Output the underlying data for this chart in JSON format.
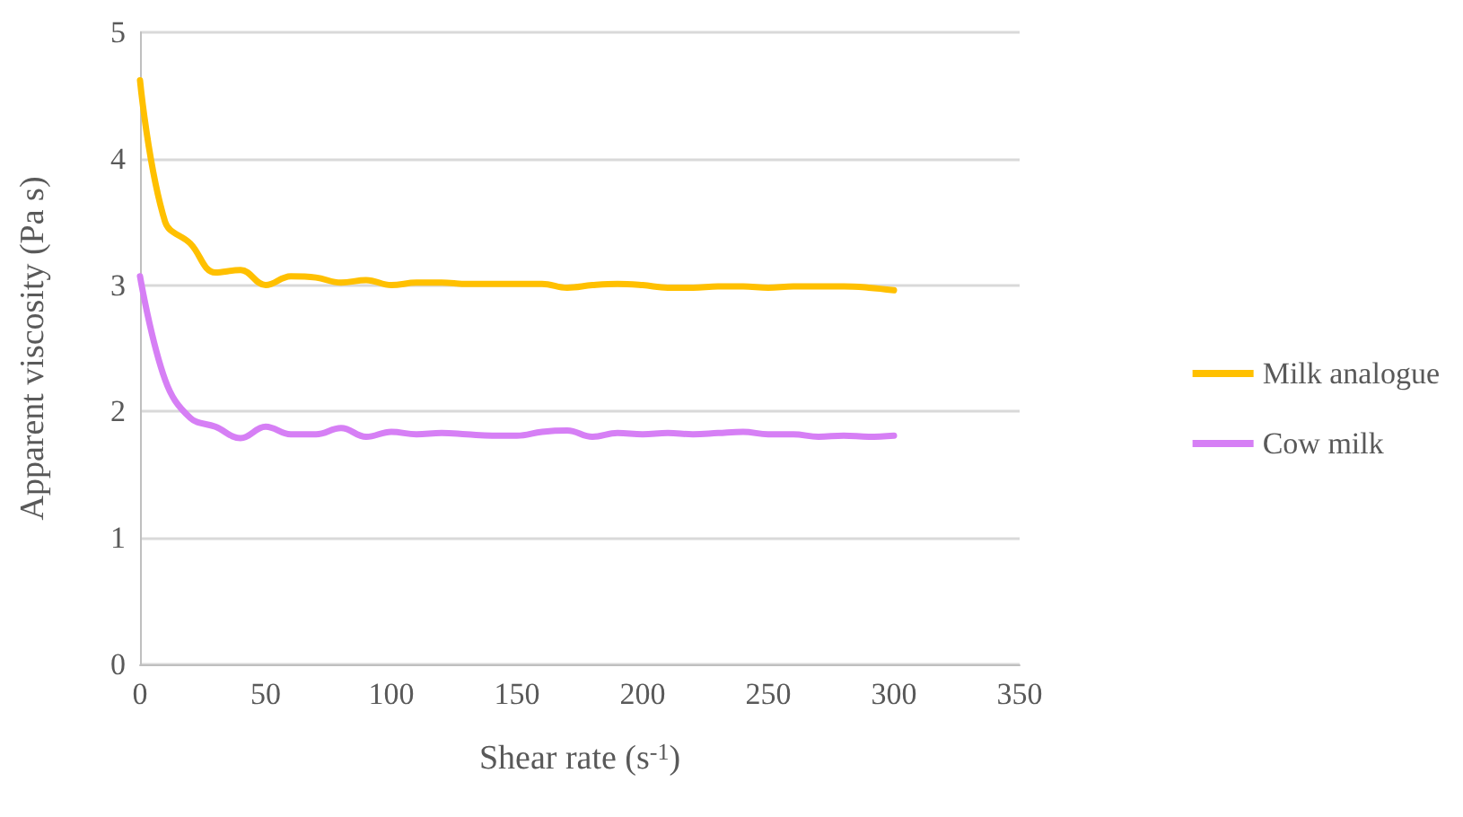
{
  "chart_data": {
    "type": "line",
    "xlabel": "Shear rate (s$^{-1}$)",
    "ylabel": "Apparent viscosity (Pa s)",
    "x": [
      0,
      10,
      20,
      30,
      40,
      50,
      60,
      70,
      80,
      90,
      100,
      110,
      120,
      130,
      140,
      150,
      160,
      170,
      180,
      190,
      200,
      210,
      220,
      230,
      240,
      250,
      260,
      270,
      280,
      290,
      300
    ],
    "series": [
      {
        "name": "Milk analogue",
        "color": "#ffc000",
        "values": [
          4.62,
          3.5,
          3.33,
          3.1,
          3.12,
          3.0,
          3.07,
          3.06,
          3.02,
          3.04,
          3.0,
          3.02,
          3.02,
          3.01,
          3.01,
          3.01,
          3.01,
          2.98,
          3.0,
          3.01,
          3.0,
          2.98,
          2.98,
          2.99,
          2.99,
          2.98,
          2.99,
          2.99,
          2.99,
          2.98,
          2.96
        ]
      },
      {
        "name": "Cow milk",
        "color": "#d67ff5",
        "values": [
          3.07,
          2.25,
          1.95,
          1.88,
          1.79,
          1.88,
          1.82,
          1.82,
          1.87,
          1.8,
          1.84,
          1.82,
          1.83,
          1.82,
          1.81,
          1.81,
          1.84,
          1.85,
          1.8,
          1.83,
          1.82,
          1.83,
          1.82,
          1.83,
          1.84,
          1.82,
          1.82,
          1.8,
          1.81,
          1.8,
          1.81
        ]
      }
    ],
    "xlim": [
      0,
      350
    ],
    "xticks": [
      0,
      50,
      100,
      150,
      200,
      250,
      300,
      350
    ],
    "ylim": [
      0,
      5
    ],
    "yticks": [
      0,
      1,
      2,
      3,
      4,
      5
    ],
    "grid": "y",
    "legend": "right",
    "marker": "none",
    "line_style": "solid"
  }
}
